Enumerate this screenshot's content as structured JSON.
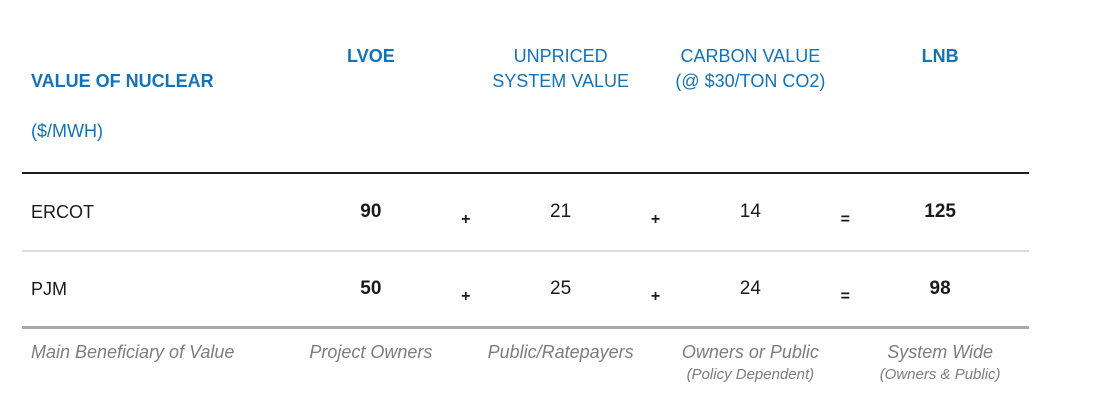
{
  "theme": {
    "header_blue": "#1273ba",
    "text_color": "#1a1a1a",
    "muted_gray": "#7d7d7d",
    "header_rule_color": "#1c1c1c",
    "rule_light_gray": "#dcdcdc",
    "rule_medium_gray": "#a9a9a9",
    "background": "#ffffff"
  },
  "table": {
    "title_line1": "VALUE OF NUCLEAR",
    "title_line2": "($/MWH)",
    "col_headers": {
      "lvoe": "LVOE",
      "unpriced_line1": "UNPRICED",
      "unpriced_line2": "SYSTEM VALUE",
      "carbon_line1": "CARBON VALUE",
      "carbon_line2": "(@ $30/TON CO2)",
      "lnb": "LNB"
    },
    "rows": [
      {
        "label": "ERCOT",
        "lvoe": "90",
        "plus1": "+",
        "unpriced": "21",
        "plus2": "+",
        "carbon": "14",
        "equals": "=",
        "lnb": "125"
      },
      {
        "label": "PJM",
        "lvoe": "50",
        "plus1": "+",
        "unpriced": "25",
        "plus2": "+",
        "carbon": "24",
        "equals": "=",
        "lnb": "98"
      }
    ],
    "beneficiary": {
      "label": "Main Beneficiary of Value",
      "lvoe": "Project Owners",
      "unpriced": "Public/Ratepayers",
      "carbon_main": "Owners or Public",
      "carbon_sub": "(Policy Dependent)",
      "lnb_main": "System Wide",
      "lnb_sub": "(Owners & Public)"
    }
  },
  "chart_data": {
    "type": "table",
    "title": "VALUE OF NUCLEAR ($/MWH)",
    "columns": [
      "LVOE",
      "UNPRICED SYSTEM VALUE",
      "CARBON VALUE (@ $30/TON CO2)",
      "LNB"
    ],
    "rows": [
      {
        "region": "ERCOT",
        "LVOE": 90,
        "UNPRICED_SYSTEM_VALUE": 21,
        "CARBON_VALUE": 14,
        "LNB": 125
      },
      {
        "region": "PJM",
        "LVOE": 50,
        "UNPRICED_SYSTEM_VALUE": 25,
        "CARBON_VALUE": 24,
        "LNB": 98
      }
    ],
    "formula": "LVOE + UNPRICED SYSTEM VALUE + CARBON VALUE = LNB",
    "main_beneficiary_of_value": {
      "LVOE": "Project Owners",
      "UNPRICED_SYSTEM_VALUE": "Public/Ratepayers",
      "CARBON_VALUE": "Owners or Public (Policy Dependent)",
      "LNB": "System Wide (Owners & Public)"
    }
  }
}
